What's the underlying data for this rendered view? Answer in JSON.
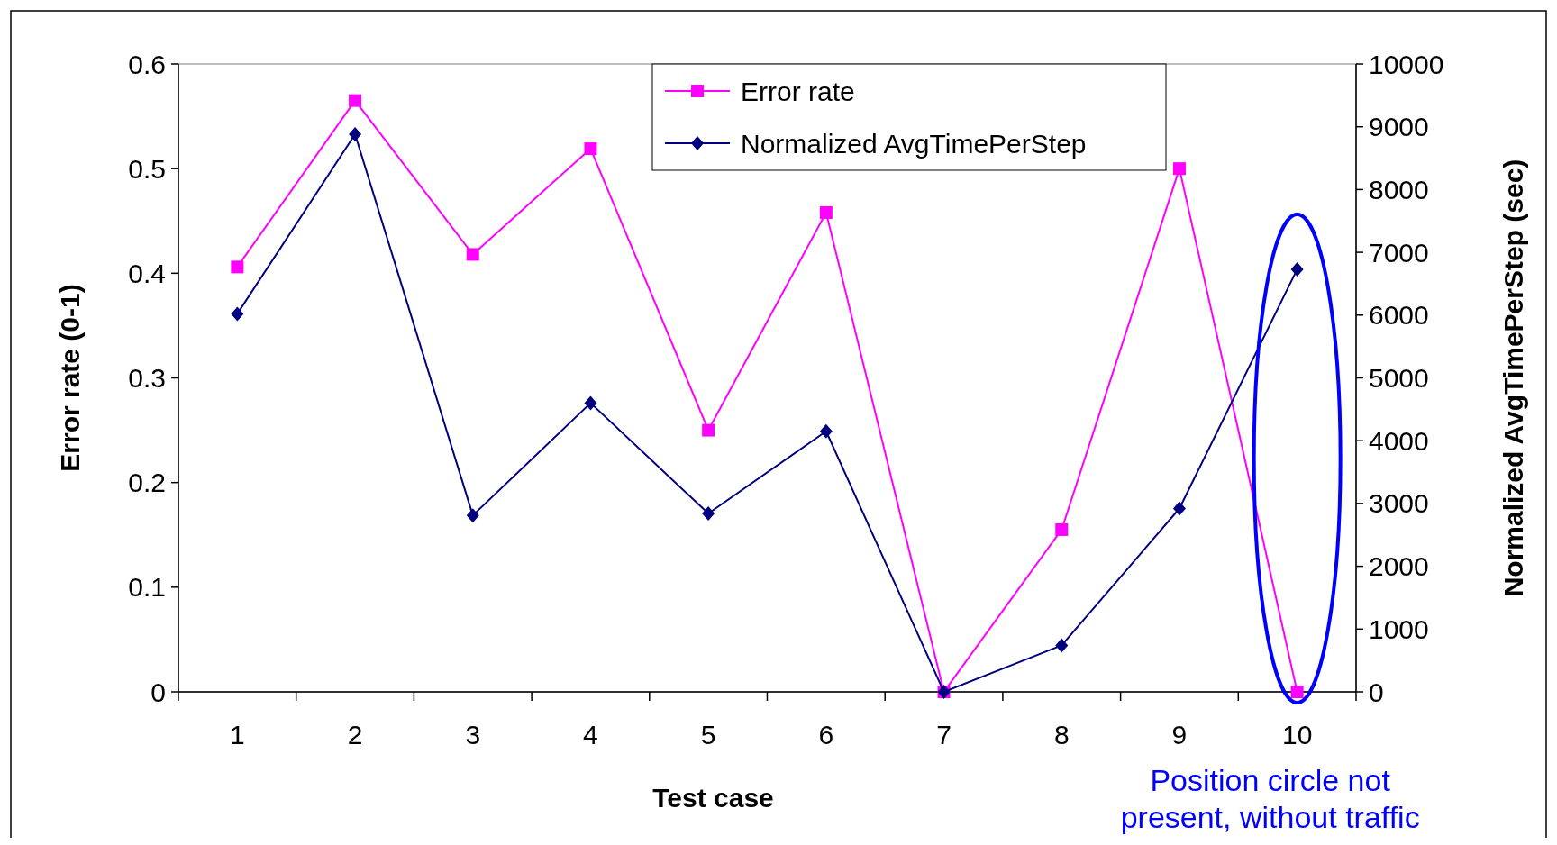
{
  "chart_data": {
    "type": "line",
    "xlabel": "Test case",
    "ylabel": "Error rate (0-1)",
    "y2label": "Normalized AvgTimePerStep (sec)",
    "categories": [
      "1",
      "2",
      "3",
      "4",
      "5",
      "6",
      "7",
      "8",
      "9",
      "10"
    ],
    "series": [
      {
        "name": "Error rate",
        "color": "#ff00ff",
        "marker": "square",
        "values": [
          0.406,
          0.565,
          0.418,
          0.519,
          0.25,
          0.458,
          0,
          0.155,
          0.5,
          0
        ]
      },
      {
        "name": "Normalized AvgTimePerStep",
        "color": "#000080",
        "marker": "diamond",
        "axis": "y2",
        "values": [
          6020,
          8880,
          2810,
          4600,
          2840,
          4150,
          0,
          740,
          2920,
          6730
        ]
      }
    ],
    "ylim": [
      0,
      0.6
    ],
    "yticks": [
      0,
      0.1,
      0.2,
      0.3,
      0.4,
      0.5,
      0.6
    ],
    "y2lim": [
      0,
      10000
    ],
    "y2ticks": [
      0,
      1000,
      2000,
      3000,
      4000,
      5000,
      6000,
      7000,
      8000,
      9000,
      10000
    ],
    "grid": false,
    "legend": "top",
    "annotations": [
      "Position circle not present, without traffic"
    ]
  }
}
